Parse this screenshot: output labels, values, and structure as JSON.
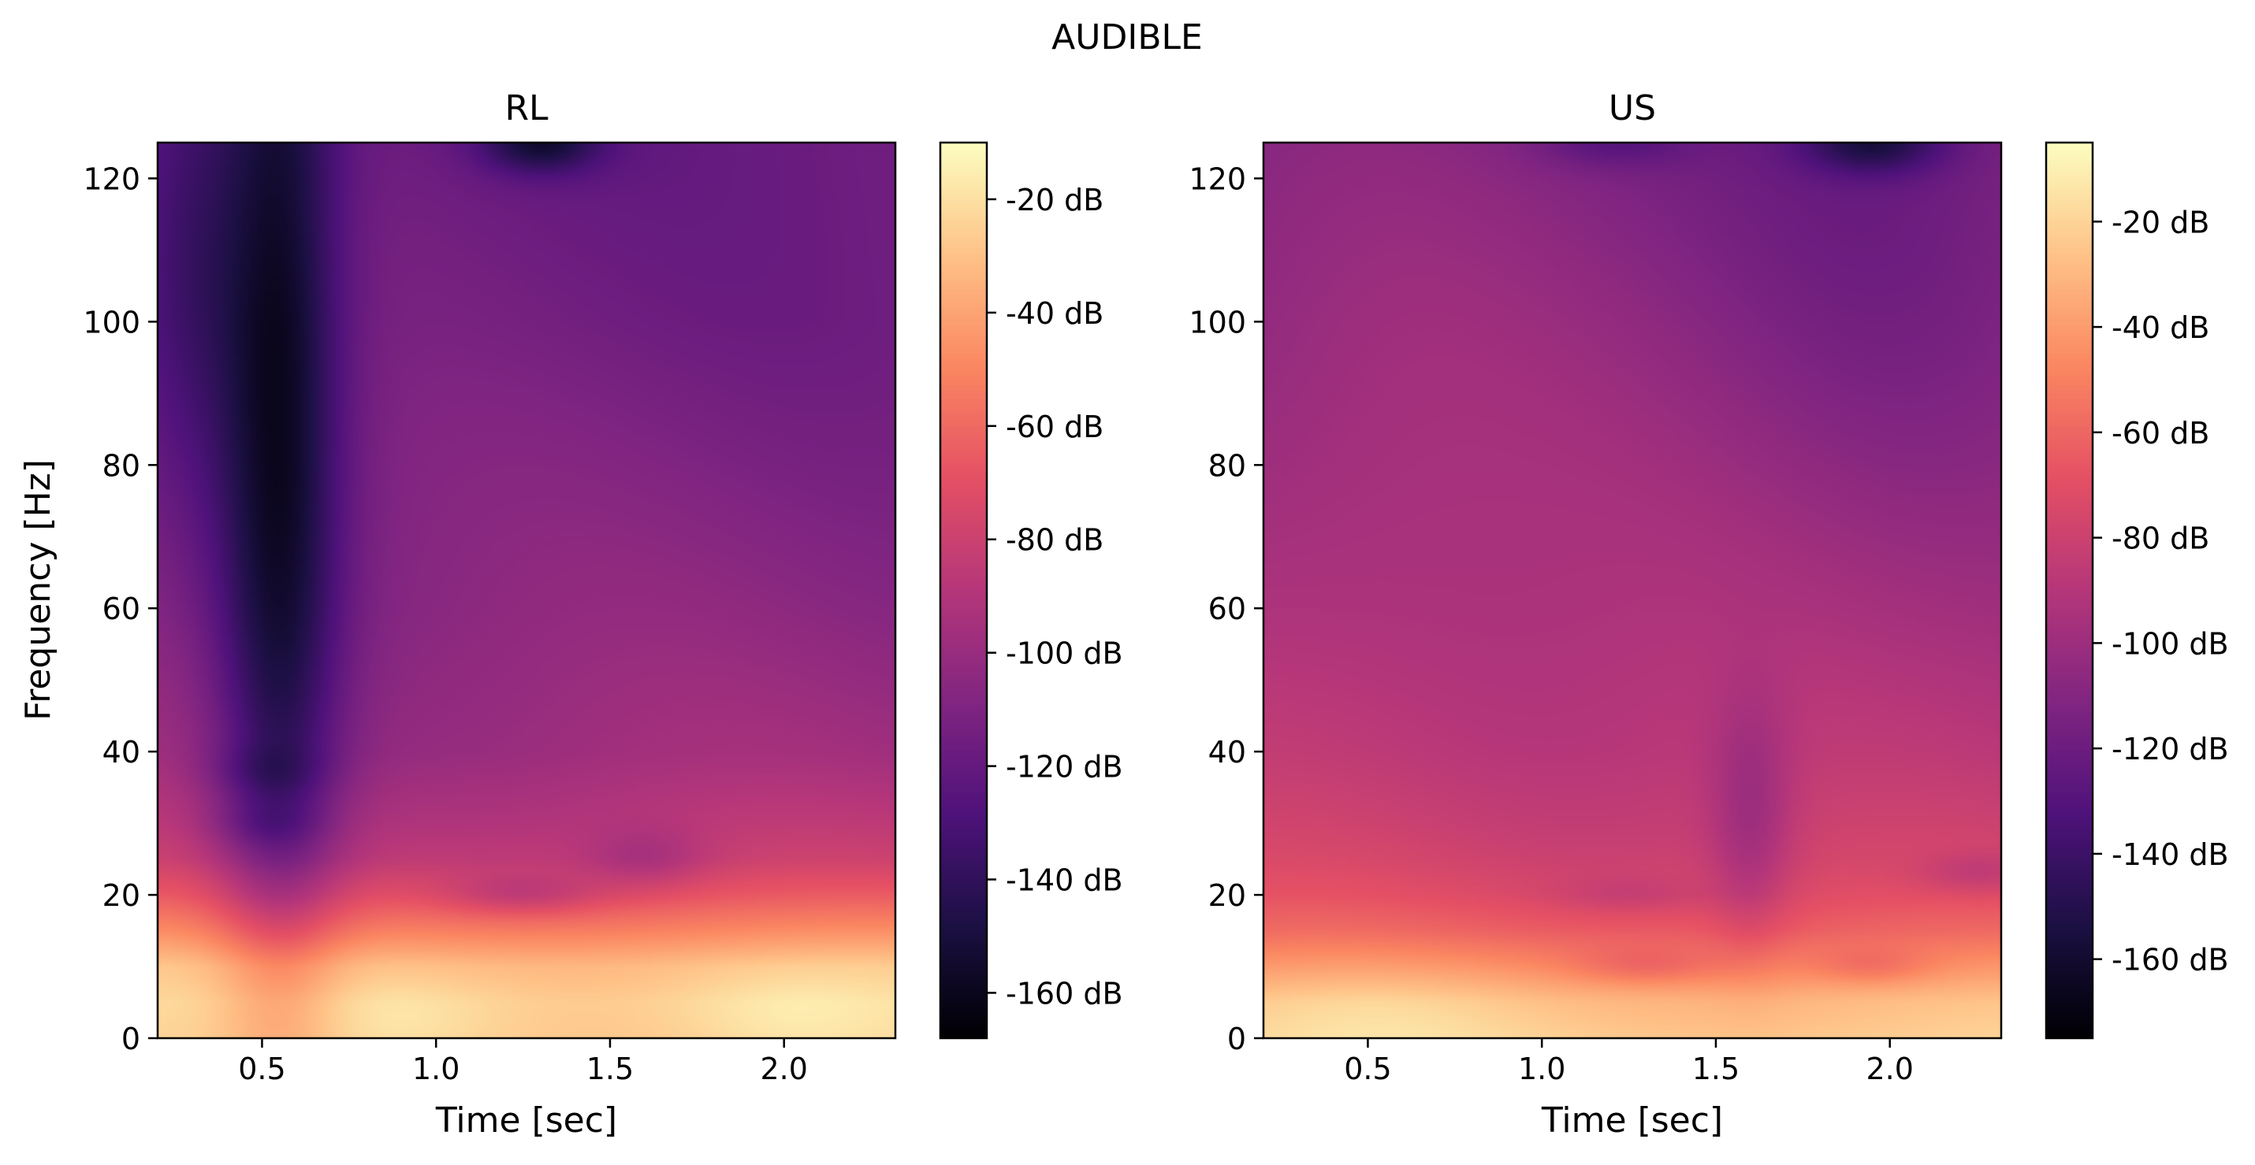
{
  "chart_data": {
    "suptitle": "AUDIBLE",
    "colormap": "magma",
    "colormap_stops": [
      "#000004",
      "#1c1044",
      "#4f127b",
      "#812581",
      "#b5367a",
      "#e55064",
      "#fb8761",
      "#fec287",
      "#fcfdbf"
    ],
    "panels": [
      {
        "type": "heatmap",
        "title": "RL",
        "xlabel": "Time [sec]",
        "ylabel": "Frequency [Hz]",
        "xlim": [
          0.2,
          2.32
        ],
        "ylim": [
          0,
          125
        ],
        "xticks": [
          0.5,
          1.0,
          1.5,
          2.0
        ],
        "xtick_labels": [
          "0.5",
          "1.0",
          "1.5",
          "2.0"
        ],
        "yticks": [
          0,
          20,
          40,
          60,
          80,
          100,
          120
        ],
        "ytick_labels": [
          "0",
          "20",
          "40",
          "60",
          "80",
          "100",
          "120"
        ],
        "colorbar": {
          "range_db": [
            -168,
            -10
          ],
          "ticks": [
            -20,
            -40,
            -60,
            -80,
            -100,
            -120,
            -140,
            -160
          ],
          "tick_labels": [
            "-20 dB",
            "-40 dB",
            "-60 dB",
            "-80 dB",
            "-100 dB",
            "-120 dB",
            "-140 dB",
            "-160 dB"
          ]
        },
        "profile": {
          "freqs": [
            0,
            5,
            10,
            15,
            20,
            25,
            30,
            40,
            60,
            80,
            100,
            125
          ],
          "db_at_freq": [
            -25,
            -24,
            -30,
            -50,
            -68,
            -82,
            -88,
            -98,
            -105,
            -110,
            -115,
            -118
          ]
        },
        "features": [
          {
            "t": 0.55,
            "f": 95,
            "dt": 0.12,
            "df": 55,
            "delta_db": -40
          },
          {
            "t": 0.55,
            "f": 45,
            "dt": 0.14,
            "df": 35,
            "delta_db": -15
          },
          {
            "t": 0.3,
            "f": 110,
            "dt": 0.12,
            "df": 25,
            "delta_db": -18
          },
          {
            "t": 0.5,
            "f": 37,
            "dt": 0.12,
            "df": 2.5,
            "delta_db": -10
          },
          {
            "t": 0.5,
            "f": 30,
            "dt": 0.12,
            "df": 2.5,
            "delta_db": -10
          },
          {
            "t": 1.25,
            "f": 20,
            "dt": 0.15,
            "df": 2.0,
            "delta_db": -14
          },
          {
            "t": 1.6,
            "f": 25,
            "dt": 0.12,
            "df": 3.0,
            "delta_db": -12
          },
          {
            "t": 1.3,
            "f": 125,
            "dt": 0.12,
            "df": 3,
            "delta_db": -35
          },
          {
            "t": 2.0,
            "f": 3,
            "dt": 0.22,
            "df": 5,
            "delta_db": 8
          },
          {
            "t": 0.9,
            "f": 3,
            "dt": 0.2,
            "df": 4,
            "delta_db": 6
          }
        ]
      },
      {
        "type": "heatmap",
        "title": "US",
        "xlabel": "Time [sec]",
        "ylabel": "",
        "xlim": [
          0.2,
          2.32
        ],
        "ylim": [
          0,
          125
        ],
        "xticks": [
          0.5,
          1.0,
          1.5,
          2.0
        ],
        "xtick_labels": [
          "0.5",
          "1.0",
          "1.5",
          "2.0"
        ],
        "yticks": [
          0,
          20,
          40,
          60,
          80,
          100,
          120
        ],
        "ytick_labels": [
          "0",
          "20",
          "40",
          "60",
          "80",
          "100",
          "120"
        ],
        "colorbar": {
          "range_db": [
            -175,
            -5
          ],
          "ticks": [
            -20,
            -40,
            -60,
            -80,
            -100,
            -120,
            -140,
            -160
          ],
          "tick_labels": [
            "-20 dB",
            "-40 dB",
            "-60 dB",
            "-80 dB",
            "-100 dB",
            "-120 dB",
            "-140 dB",
            "-160 dB"
          ]
        },
        "profile": {
          "freqs": [
            0,
            5,
            10,
            15,
            20,
            25,
            30,
            40,
            60,
            80,
            100,
            125
          ],
          "db_at_freq": [
            -22,
            -28,
            -45,
            -62,
            -72,
            -78,
            -82,
            -88,
            -95,
            -100,
            -105,
            -112
          ]
        },
        "features": [
          {
            "t": 0.55,
            "f": 3,
            "dt": 0.3,
            "df": 5,
            "delta_db": 6
          },
          {
            "t": 1.6,
            "f": 30,
            "dt": 0.08,
            "df": 12,
            "delta_db": -18
          },
          {
            "t": 1.3,
            "f": 10,
            "dt": 0.15,
            "df": 1.8,
            "delta_db": -12
          },
          {
            "t": 1.95,
            "f": 10,
            "dt": 0.12,
            "df": 1.8,
            "delta_db": -12
          },
          {
            "t": 1.25,
            "f": 20,
            "dt": 0.15,
            "df": 1.8,
            "delta_db": -8
          },
          {
            "t": 2.25,
            "f": 23,
            "dt": 0.12,
            "df": 2.0,
            "delta_db": -12
          },
          {
            "t": 1.95,
            "f": 125,
            "dt": 0.14,
            "df": 3,
            "delta_db": -35
          },
          {
            "t": 1.2,
            "f": 125,
            "dt": 0.15,
            "df": 2.5,
            "delta_db": -15
          },
          {
            "t": 2.0,
            "f": 110,
            "dt": 0.4,
            "df": 30,
            "delta_db": -10
          },
          {
            "t": 0.5,
            "f": 80,
            "dt": 0.35,
            "df": 40,
            "delta_db": 5
          }
        ]
      }
    ]
  }
}
